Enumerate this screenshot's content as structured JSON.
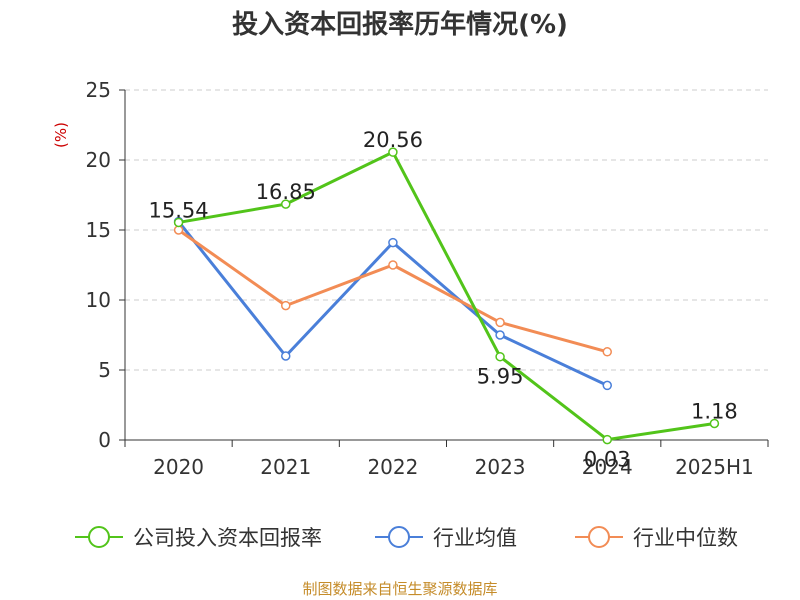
{
  "title": "投入资本回报率历年情况(%)",
  "source": "制图数据来自恒生聚源数据库",
  "chart_data": {
    "type": "line",
    "title": "投入资本回报率历年情况(%)",
    "ylabel": "(%)",
    "xlabel": "",
    "categories": [
      "2020",
      "2021",
      "2022",
      "2023",
      "2024",
      "2025H1"
    ],
    "ylim": [
      0,
      25
    ],
    "yticks": [
      0,
      5,
      10,
      15,
      20,
      25
    ],
    "grid": true,
    "legend_position": "bottom",
    "series": [
      {
        "name": "公司投入资本回报率",
        "color": "#52c41a",
        "values": [
          15.54,
          16.85,
          20.56,
          5.95,
          0.03,
          1.18
        ],
        "labels": [
          "15.54",
          "16.85",
          "20.56",
          "5.95",
          "0.03",
          "1.18"
        ]
      },
      {
        "name": "行业均值",
        "color": "#4a7fd9",
        "values": [
          15.6,
          6.0,
          14.1,
          7.5,
          3.9,
          null
        ]
      },
      {
        "name": "行业中位数",
        "color": "#f28c55",
        "values": [
          15.0,
          9.6,
          12.5,
          8.4,
          6.3,
          null
        ]
      }
    ]
  }
}
